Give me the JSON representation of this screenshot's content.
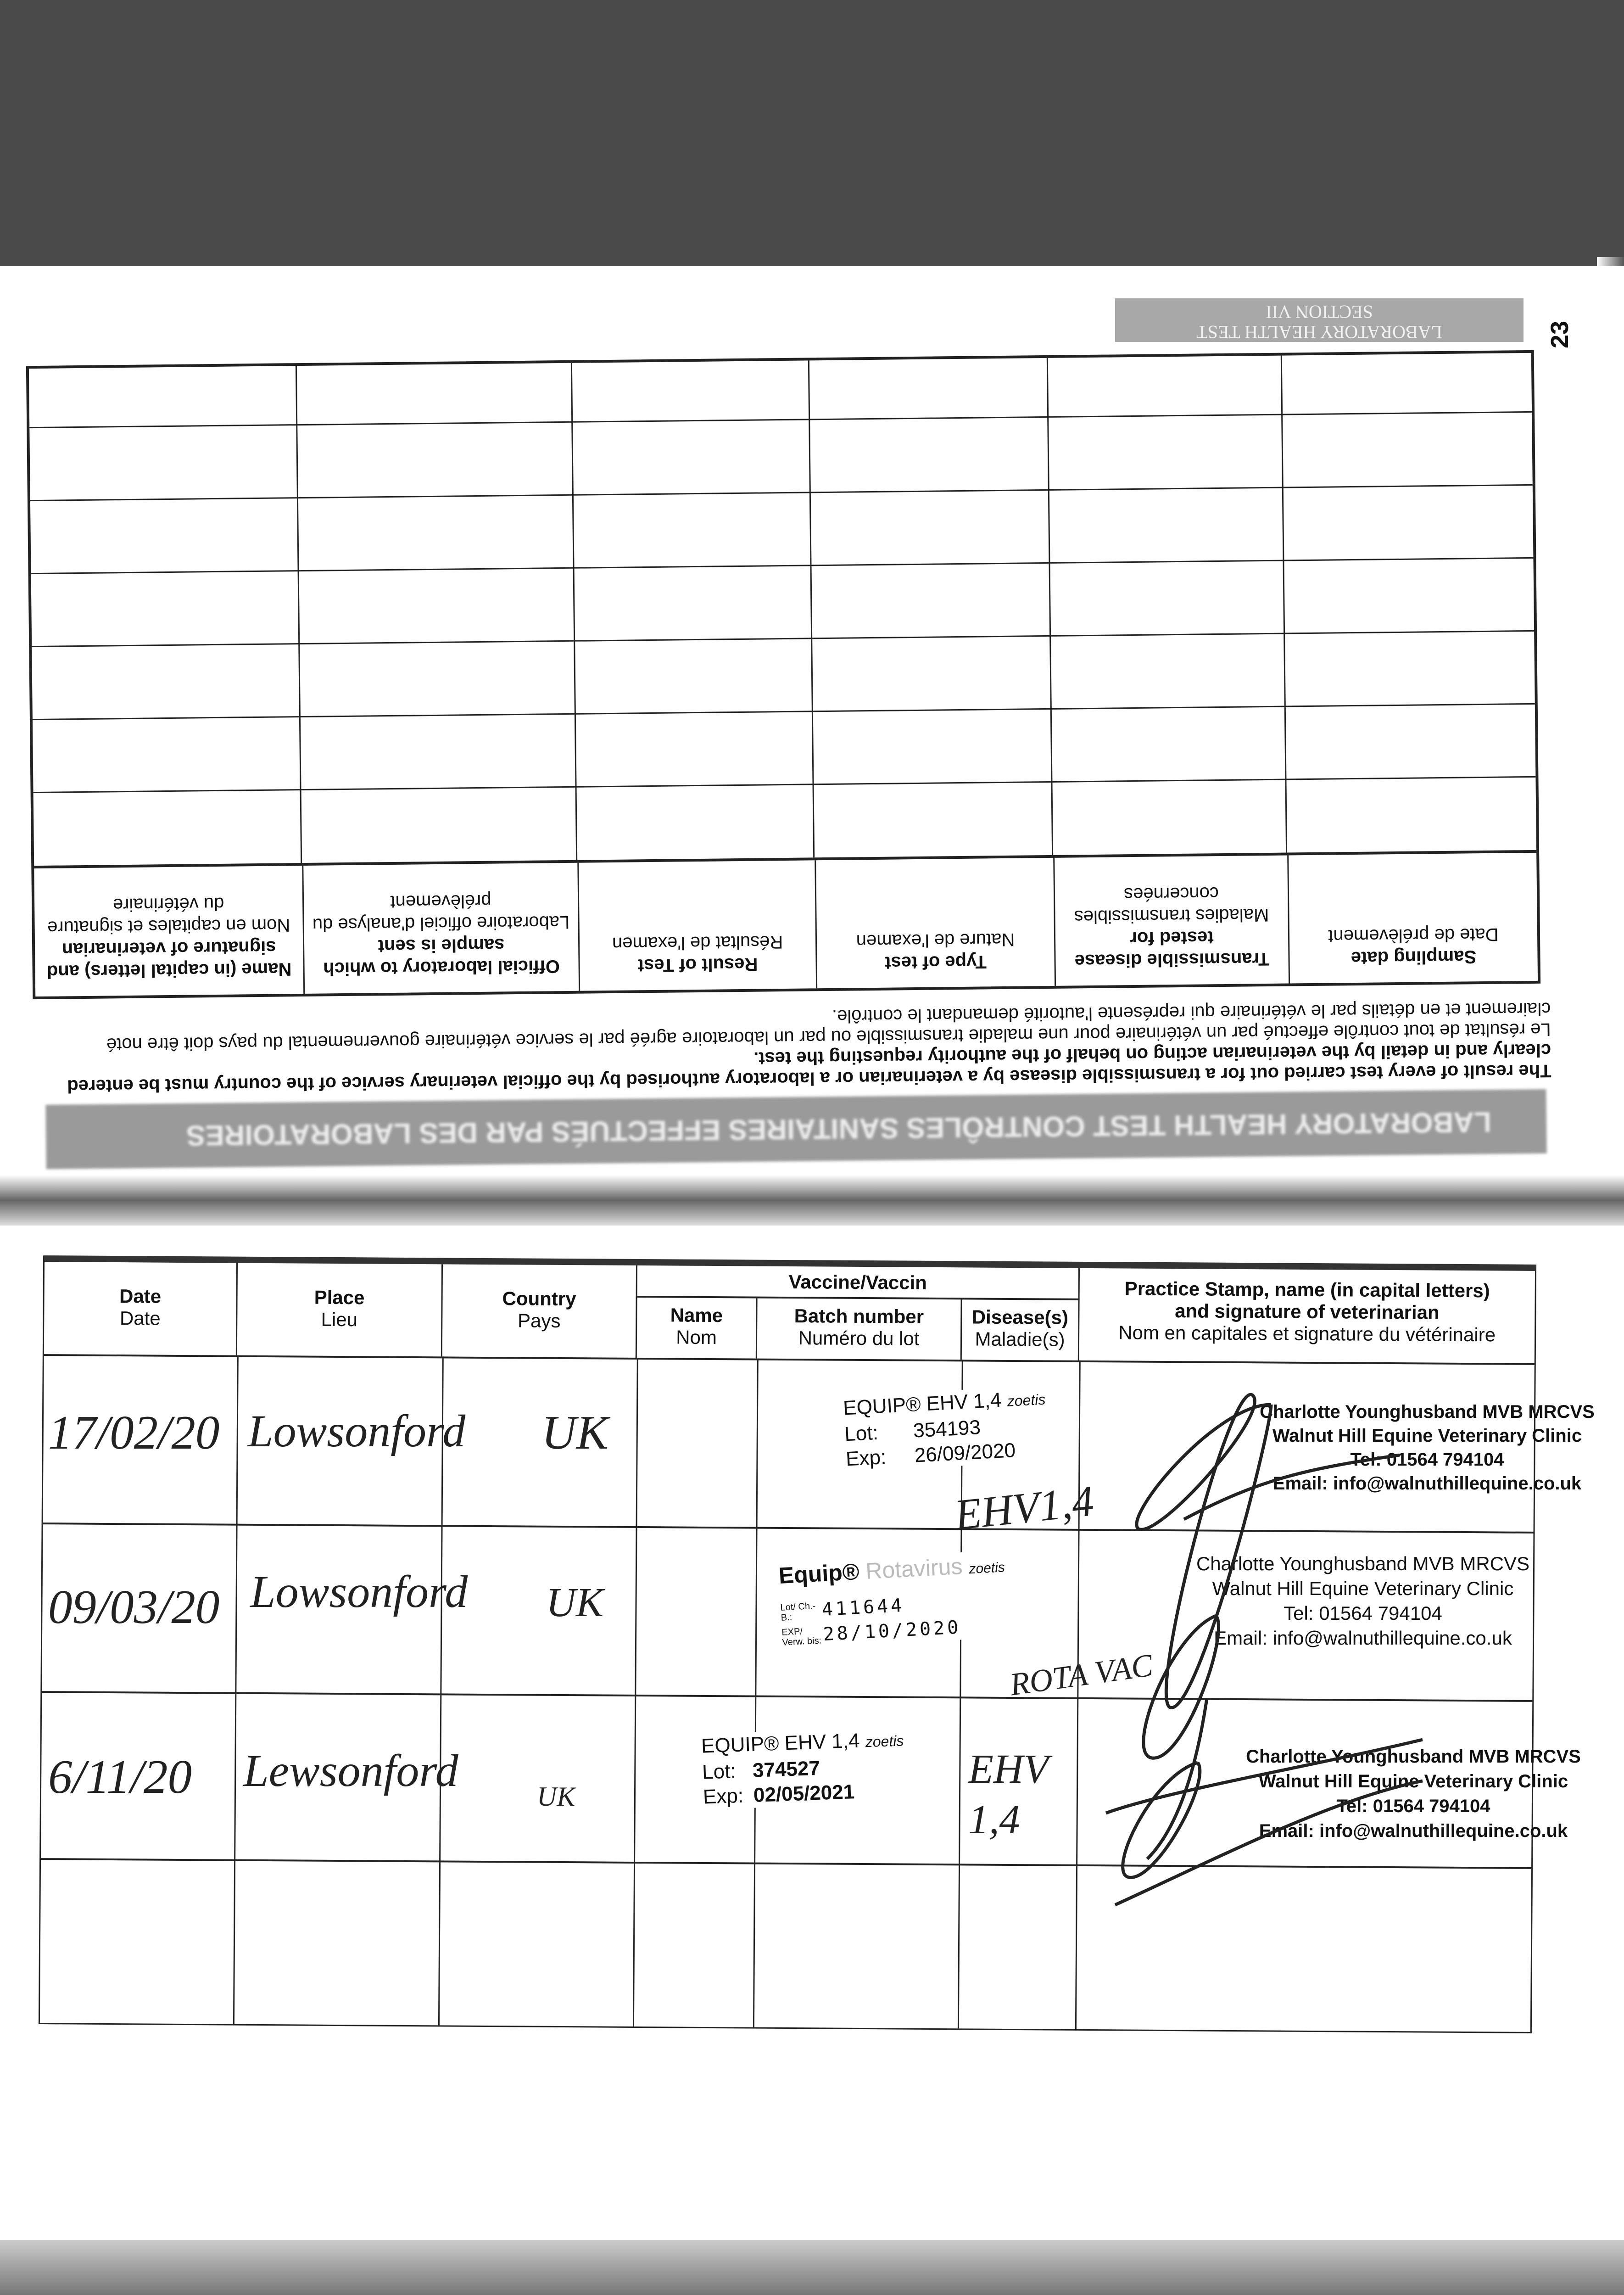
{
  "upper_page": {
    "banner": "LABORATORY HEALTH TEST CONTRÔLES SANITAIRES EFFECTUÉS PAR DES LABORATOIRES",
    "paragraph_en": "The result of every test carried out for a transmissible disease by a veterinarian or a laboratory authorised by the official veterinary service of the country must be entered clearly and in detail by the veterinarian acting on behalf of the authority requesting the test.",
    "paragraph_fr": "Le résultat de tout contrôle effectué par un vétérinaire pour une maladie transmissible ou par un laboratoire agréé par le service vétérinaire gouvernemental du pays doit être noté clairement et en détails par le vétérinaire qui représente l'autorité demandant le contrôle.",
    "columns": [
      {
        "en": "Sampling date",
        "fr": "Date de prélèvement"
      },
      {
        "en": "Transmissible disease tested for",
        "fr": "Maladies transmissibles concernées"
      },
      {
        "en": "Type of test",
        "fr": "Nature de l'examen"
      },
      {
        "en": "Result of Test",
        "fr": "Résultat de l'examen"
      },
      {
        "en": "Official laboratory to which sample is sent",
        "fr": "Laboratoire officiel d'analyse du prélèvement"
      },
      {
        "en": "Name (in capital letters) and signature of veterinarian",
        "fr": "Nom en capitales et signature du vétérinaire"
      }
    ],
    "tab_line1": "LABORATORY HEALTH TEST",
    "tab_line2": "SECTION VII",
    "page_number": "23"
  },
  "vaccination_table": {
    "headers": {
      "date": {
        "en": "Date",
        "fr": "Date"
      },
      "place": {
        "en": "Place",
        "fr": "Lieu"
      },
      "country": {
        "en": "Country",
        "fr": "Pays"
      },
      "vaccine": "Vaccine/Vaccin",
      "name": {
        "en": "Name",
        "fr": "Nom"
      },
      "batch": {
        "en": "Batch number",
        "fr": "Numéro du lot"
      },
      "disease": {
        "en": "Disease(s)",
        "fr": "Maladie(s)"
      },
      "stamp": {
        "en1": "Practice Stamp, name (in capital letters)",
        "en2": "and signature of veterinarian",
        "fr": "Nom en capitales et signature du vétérinaire"
      }
    },
    "rows": [
      {
        "date": "17/02/20",
        "place": "Lowsonford",
        "country": "UK",
        "label": {
          "product": "EQUIP® EHV 1,4",
          "brand": "zoetis",
          "lot_label": "Lot:",
          "lot": "354193",
          "exp_label": "Exp:",
          "exp": "26/09/2020"
        },
        "disease": "EHV1,4"
      },
      {
        "date": "09/03/20",
        "place": "Lowsonford",
        "country": "UK",
        "label": {
          "product": "Equip®",
          "product2": "Rotavirus",
          "brand": "zoetis",
          "lot_label": "Lot/ Ch.-B.:",
          "lot": "411644",
          "exp_label": "EXP/ Verw. bis:",
          "exp": "28/10/2020"
        },
        "disease": "ROTA VAC"
      },
      {
        "date": "6/11/20",
        "place": "Lewsonford",
        "country": "UK",
        "label": {
          "product": "EQUIP® EHV 1,4",
          "brand": "zoetis",
          "lot_label": "Lot:",
          "lot": "374527",
          "exp_label": "Exp:",
          "exp": "02/05/2021"
        },
        "disease": "EHV 1,4"
      }
    ],
    "stamp": {
      "name": "Charlotte Younghusband MVB MRCVS",
      "clinic": "Walnut Hill Equine Veterinary Clinic",
      "tel": "Tel: 01564 794104",
      "email": "Email: info@walnuthillequine.co.uk"
    }
  }
}
